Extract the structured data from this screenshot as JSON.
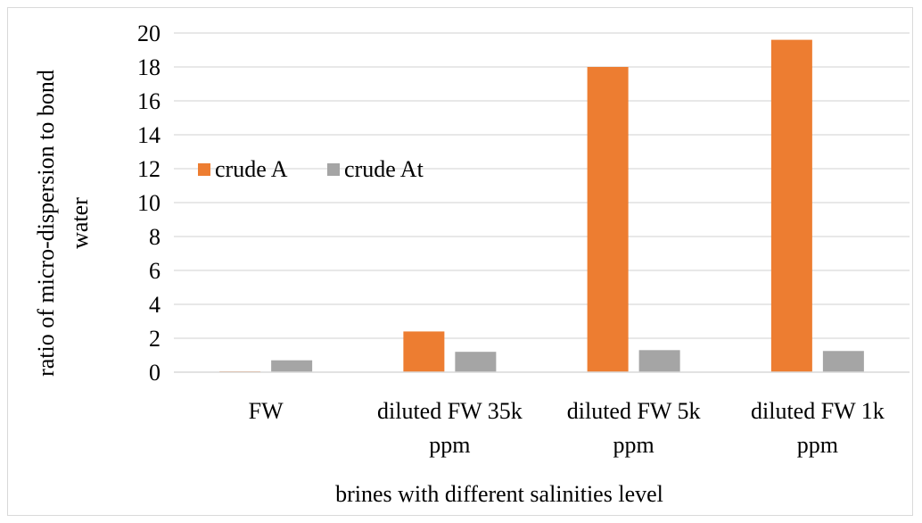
{
  "chart_data": {
    "type": "bar",
    "title": "",
    "xlabel": "brines with different salinities level",
    "ylabel": "ratio of micro-dispersion to bond water",
    "ylabel_lines": [
      "ratio of micro-dispersion to bond",
      "water"
    ],
    "categories": [
      "FW",
      "diluted FW 35k ppm",
      "diluted FW 5k ppm",
      "diluted FW 1k ppm"
    ],
    "category_lines": [
      [
        "FW"
      ],
      [
        "diluted FW 35k",
        "ppm"
      ],
      [
        "diluted FW 5k",
        "ppm"
      ],
      [
        "diluted FW 1k",
        "ppm"
      ]
    ],
    "series": [
      {
        "name": "crude A",
        "color": "#ED7D31",
        "values": [
          0.05,
          2.4,
          18.0,
          19.6
        ]
      },
      {
        "name": "crude At",
        "color": "#A5A5A5",
        "values": [
          0.7,
          1.2,
          1.3,
          1.25
        ]
      }
    ],
    "ylim": [
      0,
      20
    ],
    "yticks": [
      0,
      2,
      4,
      6,
      8,
      10,
      12,
      14,
      16,
      18,
      20
    ],
    "grid": true,
    "legend_position": "left, inside plot area"
  }
}
